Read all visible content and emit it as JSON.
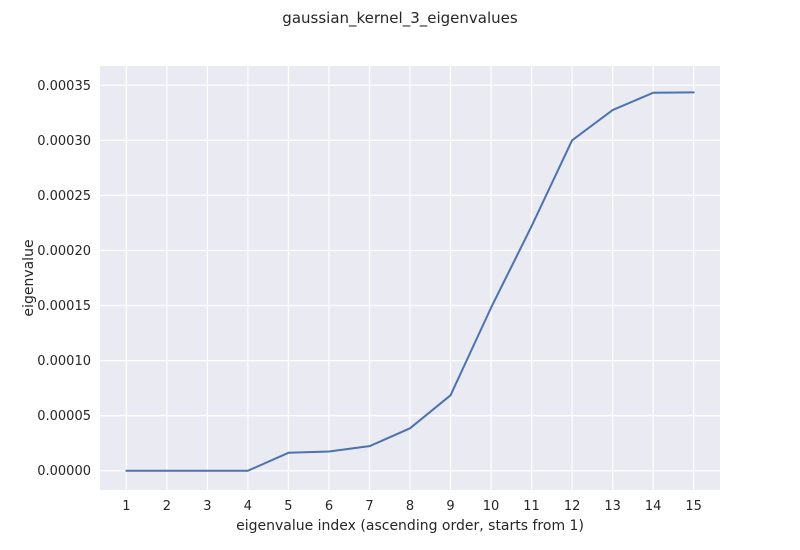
{
  "chart_data": {
    "type": "line",
    "title": "gaussian_kernel_3_eigenvalues",
    "xlabel": "eigenvalue index (ascending order, starts from 1)",
    "ylabel": "eigenvalue",
    "xlim": [
      0.35,
      15.65
    ],
    "ylim": [
      -1.75e-05,
      0.0003675
    ],
    "x_ticks": [
      1,
      2,
      3,
      4,
      5,
      6,
      7,
      8,
      9,
      10,
      11,
      12,
      13,
      14,
      15
    ],
    "x_tick_labels": [
      "1",
      "2",
      "3",
      "4",
      "5",
      "6",
      "7",
      "8",
      "9",
      "10",
      "11",
      "12",
      "13",
      "14",
      "15"
    ],
    "y_ticks": [
      0,
      5e-05,
      0.0001,
      0.00015,
      0.0002,
      0.00025,
      0.0003,
      0.00035
    ],
    "y_tick_labels": [
      "0.00000",
      "0.00005",
      "0.00010",
      "0.00015",
      "0.00020",
      "0.00025",
      "0.00030",
      "0.00035"
    ],
    "grid": true,
    "series": [
      {
        "color": "#4c72b0",
        "x": [
          1,
          2,
          3,
          4,
          5,
          6,
          7,
          8,
          9,
          10,
          11,
          12,
          13,
          14,
          15
        ],
        "y": [
          0.0,
          0.0,
          0.0,
          0.0,
          1.63e-05,
          1.75e-05,
          2.23e-05,
          3.85e-05,
          6.85e-05,
          0.000148,
          0.000222,
          0.0003,
          0.0003275,
          0.0003432,
          0.0003435
        ]
      }
    ]
  }
}
